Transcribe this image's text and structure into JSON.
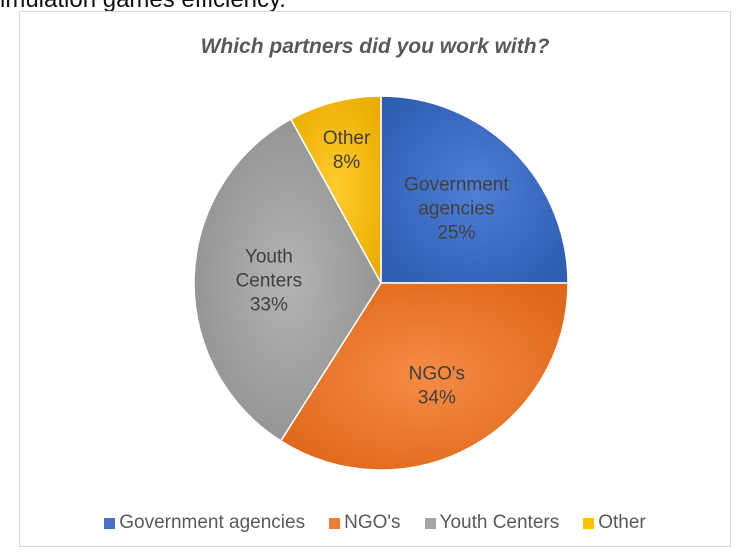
{
  "page": {
    "header_fragment": "imulation games efficiency."
  },
  "chart_data": {
    "type": "pie",
    "title": "Which partners did you work with?",
    "categories": [
      "Government agencies",
      "NGO's",
      "Youth Centers",
      "Other"
    ],
    "label_lines": [
      [
        "Government",
        "agencies",
        "25%"
      ],
      [
        "NGO's",
        "34%"
      ],
      [
        "Youth",
        "Centers",
        "33%"
      ],
      [
        "Other",
        "8%"
      ]
    ],
    "values": [
      25,
      34,
      33,
      8
    ],
    "colors": [
      "#4472C4",
      "#ED7D31",
      "#A5A5A5",
      "#FFC000"
    ],
    "legend_position": "bottom"
  }
}
